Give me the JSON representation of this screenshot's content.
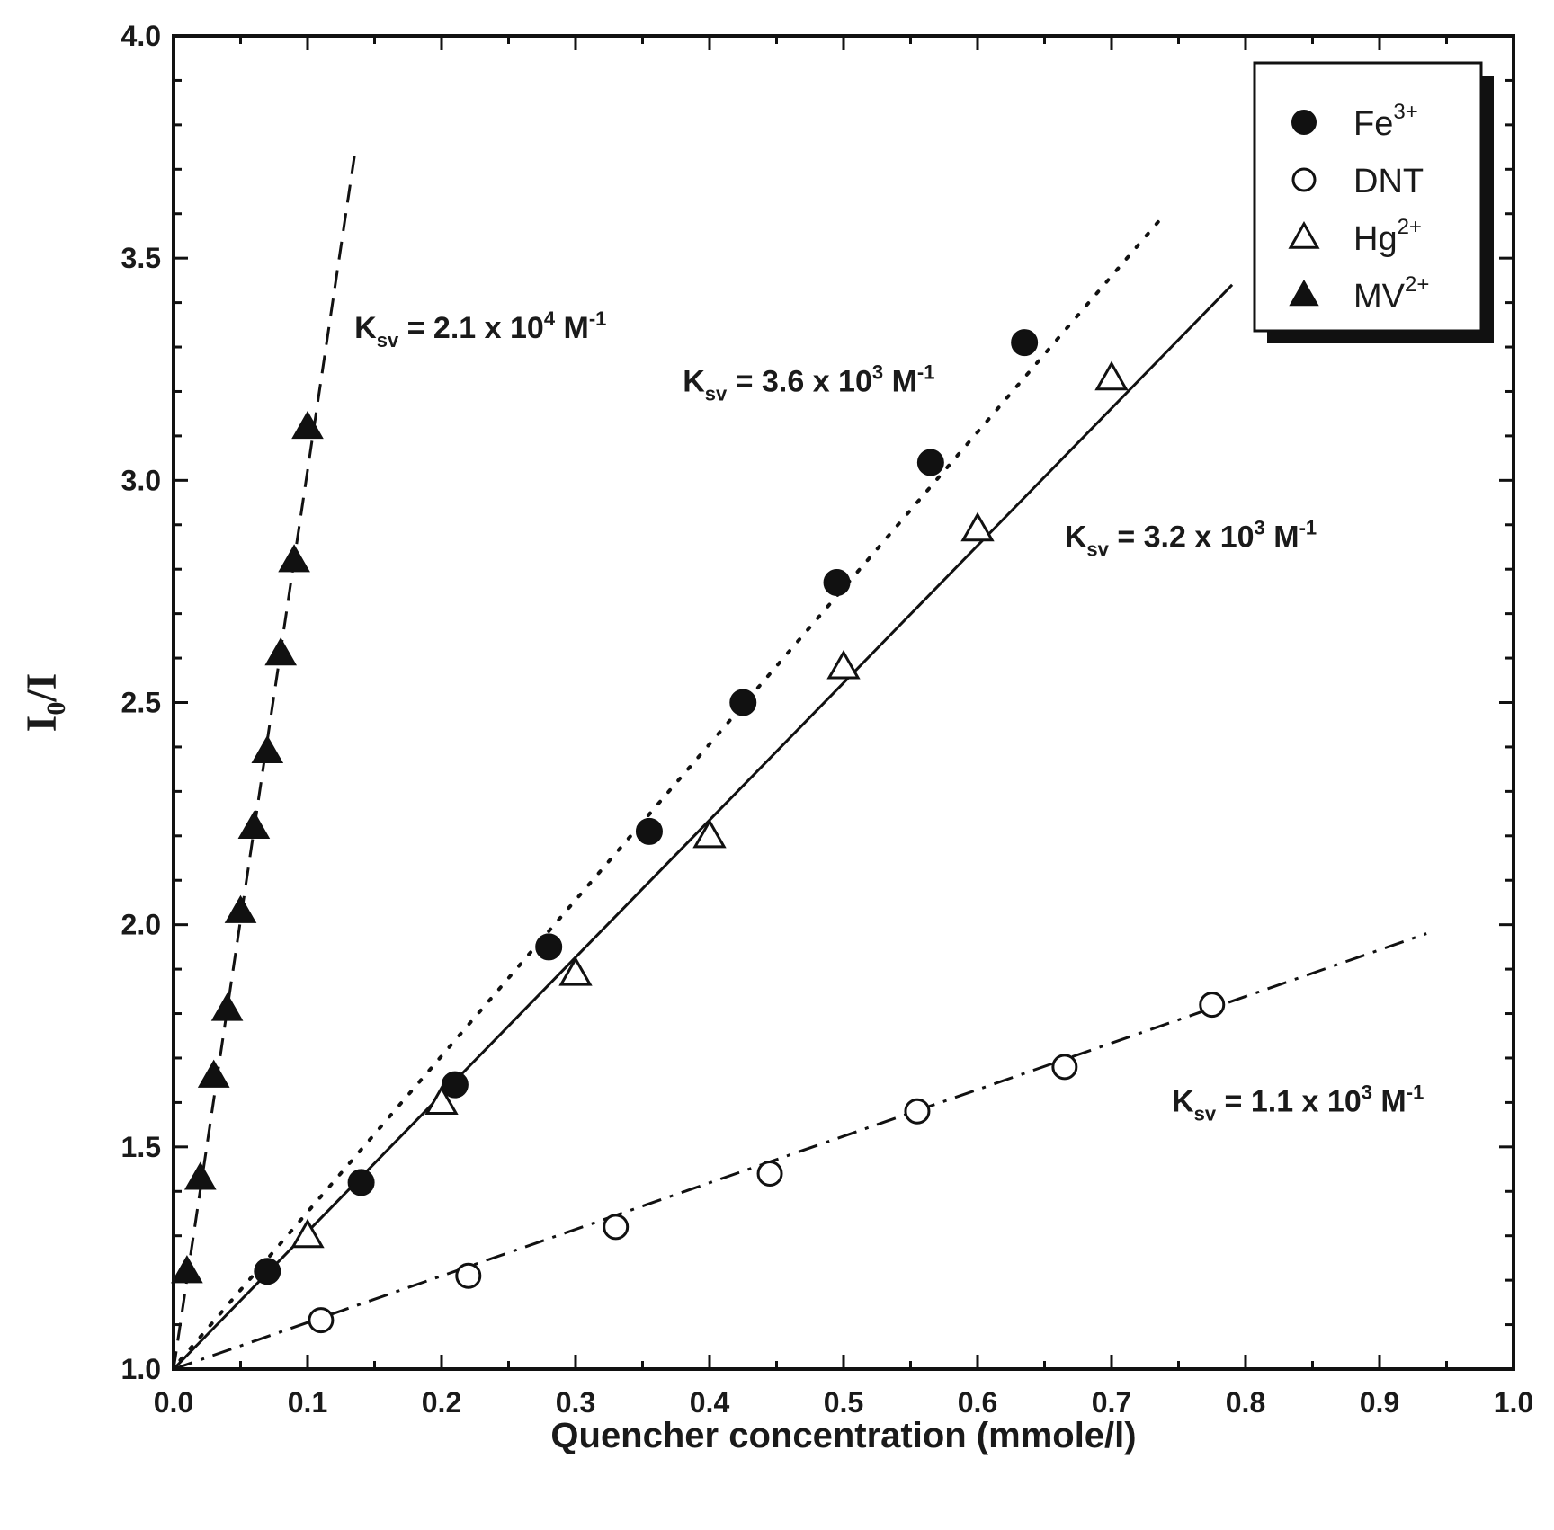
{
  "chart_data": {
    "type": "scatter",
    "xlabel": "Quencher concentration (mmole/l)",
    "ylabel": {
      "main": "I",
      "sub": "0",
      "tail": "/I"
    },
    "xlim": [
      0.0,
      1.0
    ],
    "ylim": [
      1.0,
      4.0
    ],
    "xticks": [
      "0.0",
      "0.1",
      "0.2",
      "0.3",
      "0.4",
      "0.5",
      "0.6",
      "0.7",
      "0.8",
      "0.9",
      "1.0"
    ],
    "yticks": [
      "1.0",
      "1.5",
      "2.0",
      "2.5",
      "3.0",
      "3.5",
      "4.0"
    ],
    "legend_position": "top-right",
    "series": [
      {
        "name": {
          "base": "Fe",
          "sup": "3+"
        },
        "marker": "filled-circle",
        "x": [
          0.07,
          0.14,
          0.21,
          0.28,
          0.355,
          0.425,
          0.495,
          0.565,
          0.635
        ],
        "y": [
          1.22,
          1.42,
          1.64,
          1.95,
          2.21,
          2.5,
          2.77,
          3.04,
          3.31
        ],
        "fit": {
          "style": "dotted",
          "x": [
            0.005,
            0.74
          ],
          "y": [
            1.02,
            3.6
          ]
        }
      },
      {
        "name": {
          "base": "DNT",
          "sup": ""
        },
        "marker": "open-circle",
        "x": [
          0.11,
          0.22,
          0.33,
          0.445,
          0.555,
          0.665,
          0.775
        ],
        "y": [
          1.11,
          1.21,
          1.32,
          1.44,
          1.58,
          1.68,
          1.82
        ],
        "fit": {
          "style": "dash-dot",
          "x": [
            0.0,
            0.935
          ],
          "y": [
            1.0,
            1.98
          ]
        }
      },
      {
        "name": {
          "base": "Hg",
          "sup": "2+"
        },
        "marker": "open-triangle",
        "x": [
          0.1,
          0.2,
          0.3,
          0.4,
          0.5,
          0.6,
          0.7
        ],
        "y": [
          1.3,
          1.6,
          1.89,
          2.2,
          2.58,
          2.89,
          3.23
        ],
        "fit": {
          "style": "solid",
          "x": [
            0.0,
            0.79
          ],
          "y": [
            1.0,
            3.44
          ]
        }
      },
      {
        "name": {
          "base": "MV",
          "sup": "2+"
        },
        "marker": "filled-triangle",
        "x": [
          0.01,
          0.02,
          0.03,
          0.04,
          0.05,
          0.06,
          0.07,
          0.08,
          0.09,
          0.1
        ],
        "y": [
          1.22,
          1.43,
          1.66,
          1.81,
          2.03,
          2.22,
          2.39,
          2.61,
          2.82,
          3.12
        ],
        "fit": {
          "style": "dashed",
          "x": [
            0.0,
            0.135
          ],
          "y": [
            1.0,
            3.73
          ]
        }
      }
    ],
    "annotations": [
      {
        "pre": "K",
        "sub": "sv",
        "mid": " = 2.1 x 10",
        "exp": "4",
        "unit": " M",
        "unitexp": "-1",
        "ax": 0.135,
        "ay": 3.32
      },
      {
        "pre": "K",
        "sub": "sv",
        "mid": " = 3.6 x 10",
        "exp": "3",
        "unit": " M",
        "unitexp": "-1",
        "ax": 0.38,
        "ay": 3.2
      },
      {
        "pre": "K",
        "sub": "sv",
        "mid": " = 3.2 x 10",
        "exp": "3",
        "unit": " M",
        "unitexp": "-1",
        "ax": 0.665,
        "ay": 2.85
      },
      {
        "pre": "K",
        "sub": "sv",
        "mid": " = 1.1 x 10",
        "exp": "3",
        "unit": " M",
        "unitexp": "-1",
        "ax": 0.745,
        "ay": 1.58
      }
    ]
  }
}
